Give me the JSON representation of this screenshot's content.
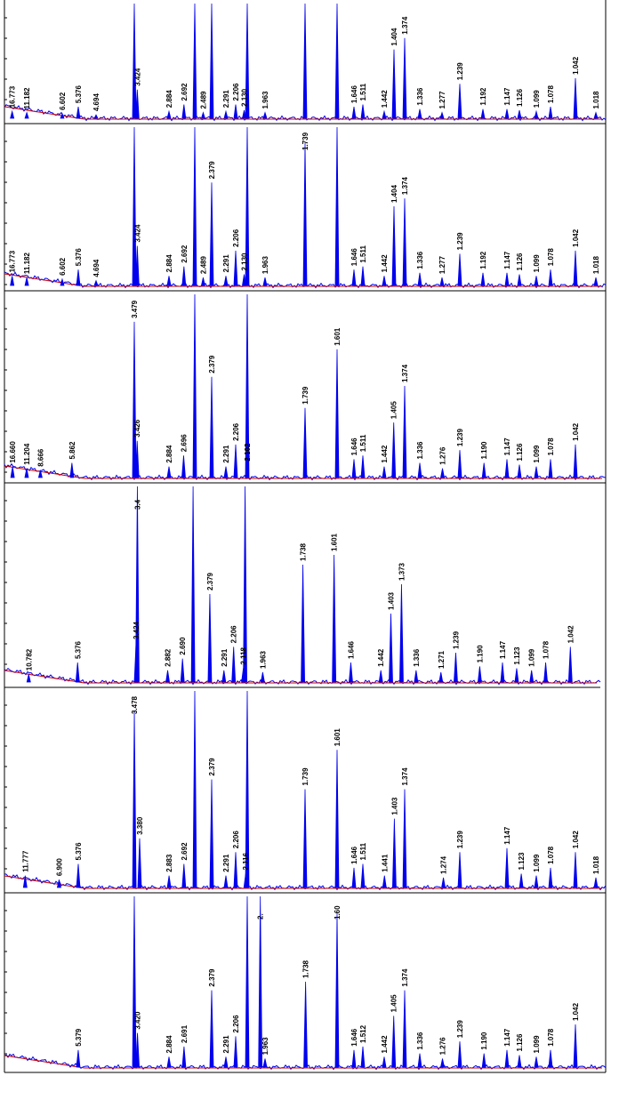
{
  "colors": {
    "trace": "#0000ee",
    "baseline": "#cc0000",
    "label": "#000000",
    "label_red": "#dd0000",
    "axis": "#000000"
  },
  "chart_data": [
    {
      "type": "line",
      "title": "",
      "xlabel": "",
      "ylabel": "",
      "peaks": [
        {
          "d": "16.773",
          "h": 0.06
        },
        {
          "d": "11.182",
          "h": 0.05
        },
        {
          "d": "6.602",
          "h": 0.04
        },
        {
          "d": "5.376",
          "h": 0.1
        },
        {
          "d": "4.694",
          "h": 0.03
        },
        {
          "d": "3.424",
          "h": 0.25
        },
        {
          "d": "2.884",
          "h": 0.06
        },
        {
          "d": "2.692",
          "h": 0.12
        },
        {
          "d": "2.489",
          "h": 0.05
        },
        {
          "d": "2.291",
          "h": 0.06
        },
        {
          "d": "2.206",
          "h": 0.12
        },
        {
          "d": "2.130",
          "h": 0.07
        },
        {
          "d": "1.963",
          "h": 0.05
        },
        {
          "d": "1.646",
          "h": 0.1
        },
        {
          "d": "1.511",
          "h": 0.12
        },
        {
          "d": "1.442",
          "h": 0.06
        },
        {
          "d": "1.404",
          "h": 0.6
        },
        {
          "d": "1.374",
          "h": 0.7
        },
        {
          "d": "1.336",
          "h": 0.08
        },
        {
          "d": "1.277",
          "h": 0.05
        },
        {
          "d": "1.239",
          "h": 0.3
        },
        {
          "d": "1.192",
          "h": 0.08
        },
        {
          "d": "1.147",
          "h": 0.08
        },
        {
          "d": "1.126",
          "h": 0.07
        },
        {
          "d": "1.099",
          "h": 0.06
        },
        {
          "d": "1.078",
          "h": 0.1
        },
        {
          "d": "1.042",
          "h": 0.35
        },
        {
          "d": "1.018",
          "h": 0.05
        }
      ],
      "red_labels": [
        "1.336",
        "1.079",
        "1.042"
      ],
      "unlabeled_peaks": [
        {
          "d": 3.479,
          "h": 1.0
        },
        {
          "d": 2.379,
          "h": 1.0
        },
        {
          "d": 2.598,
          "h": 1.0
        },
        {
          "d": 2.102,
          "h": 1.0
        },
        {
          "d": 1.739,
          "h": 1.0
        },
        {
          "d": 1.601,
          "h": 1.0
        }
      ]
    },
    {
      "type": "line",
      "title": "",
      "xlabel": "",
      "ylabel": "",
      "peaks": [
        {
          "d": "16.773",
          "h": 0.06
        },
        {
          "d": "11.182",
          "h": 0.05
        },
        {
          "d": "6.602",
          "h": 0.04
        },
        {
          "d": "5.376",
          "h": 0.1
        },
        {
          "d": "4.694",
          "h": 0.03
        },
        {
          "d": "3.424",
          "h": 0.25
        },
        {
          "d": "2.884",
          "h": 0.06
        },
        {
          "d": "2.692",
          "h": 0.12
        },
        {
          "d": "2.379",
          "h": 0.65
        },
        {
          "d": "2.489",
          "h": 0.05
        },
        {
          "d": "2.291",
          "h": 0.06
        },
        {
          "d": "2.206",
          "h": 0.22
        },
        {
          "d": "2.130",
          "h": 0.07
        },
        {
          "d": "1.963",
          "h": 0.05
        },
        {
          "d": "1.739",
          "h": 0.9
        },
        {
          "d": "1.646",
          "h": 0.1
        },
        {
          "d": "1.511",
          "h": 0.12
        },
        {
          "d": "1.442",
          "h": 0.06
        },
        {
          "d": "1.404",
          "h": 0.5
        },
        {
          "d": "1.374",
          "h": 0.55
        },
        {
          "d": "1.336",
          "h": 0.08
        },
        {
          "d": "1.277",
          "h": 0.05
        },
        {
          "d": "1.239",
          "h": 0.2
        },
        {
          "d": "1.192",
          "h": 0.08
        },
        {
          "d": "1.147",
          "h": 0.08
        },
        {
          "d": "1.126",
          "h": 0.07
        },
        {
          "d": "1.099",
          "h": 0.06
        },
        {
          "d": "1.078",
          "h": 0.1
        },
        {
          "d": "1.042",
          "h": 0.22
        },
        {
          "d": "1.018",
          "h": 0.05
        }
      ],
      "red_labels": [
        "1.336",
        "1.079",
        "1.042"
      ],
      "unlabeled_peaks": [
        {
          "d": 3.479,
          "h": 1.0
        },
        {
          "d": 2.598,
          "h": 1.0
        },
        {
          "d": 2.102,
          "h": 1.0
        },
        {
          "d": 1.601,
          "h": 1.0
        }
      ]
    },
    {
      "type": "line",
      "title": "",
      "xlabel": "",
      "ylabel": "",
      "peaks": [
        {
          "d": "16.660",
          "h": 0.06
        },
        {
          "d": "11.204",
          "h": 0.05
        },
        {
          "d": "8.666",
          "h": 0.04
        },
        {
          "d": "5.862",
          "h": 0.08
        },
        {
          "d": "3.479",
          "h": 0.85
        },
        {
          "d": "3.426",
          "h": 0.2
        },
        {
          "d": "2.884",
          "h": 0.06
        },
        {
          "d": "2.696",
          "h": 0.12
        },
        {
          "d": "2.379",
          "h": 0.55
        },
        {
          "d": "2.291",
          "h": 0.06
        },
        {
          "d": "2.206",
          "h": 0.18
        },
        {
          "d": "2.102",
          "h": 0.07
        },
        {
          "d": "1.739",
          "h": 0.38
        },
        {
          "d": "1.601",
          "h": 0.7
        },
        {
          "d": "1.646",
          "h": 0.1
        },
        {
          "d": "1.511",
          "h": 0.12
        },
        {
          "d": "1.442",
          "h": 0.06
        },
        {
          "d": "1.405",
          "h": 0.3
        },
        {
          "d": "1.374",
          "h": 0.5
        },
        {
          "d": "1.336",
          "h": 0.08
        },
        {
          "d": "1.276",
          "h": 0.05
        },
        {
          "d": "1.239",
          "h": 0.15
        },
        {
          "d": "1.190",
          "h": 0.08
        },
        {
          "d": "1.147",
          "h": 0.1
        },
        {
          "d": "1.126",
          "h": 0.07
        },
        {
          "d": "1.099",
          "h": 0.06
        },
        {
          "d": "1.078",
          "h": 0.1
        },
        {
          "d": "1.042",
          "h": 0.18
        }
      ],
      "red_labels": [
        "1.079",
        "1.042"
      ],
      "unlabeled_peaks": [
        {
          "d": 2.598,
          "h": 1.0
        },
        {
          "d": 2.102,
          "h": 1.0
        }
      ]
    },
    {
      "type": "line",
      "title": "",
      "xlabel": "",
      "ylabel": "",
      "peaks": [
        {
          "d": "10.782",
          "h": 0.04
        },
        {
          "d": "5.376",
          "h": 0.1
        },
        {
          "d": "3.4",
          "h": 1.0
        },
        {
          "d": "3.424",
          "h": 0.2
        },
        {
          "d": "2.882",
          "h": 0.06
        },
        {
          "d": "2.690",
          "h": 0.12
        },
        {
          "d": "2.379",
          "h": 0.45
        },
        {
          "d": "2.291",
          "h": 0.06
        },
        {
          "d": "2.206",
          "h": 0.18
        },
        {
          "d": "2.118",
          "h": 0.07
        },
        {
          "d": "1.963",
          "h": 0.05
        },
        {
          "d": "1.738",
          "h": 0.6
        },
        {
          "d": "1.601",
          "h": 0.65
        },
        {
          "d": "1.646",
          "h": 0.1
        },
        {
          "d": "1.442",
          "h": 0.06
        },
        {
          "d": "1.403",
          "h": 0.35
        },
        {
          "d": "1.373",
          "h": 0.5
        },
        {
          "d": "1.336",
          "h": 0.06
        },
        {
          "d": "1.271",
          "h": 0.05
        },
        {
          "d": "1.239",
          "h": 0.15
        },
        {
          "d": "1.190",
          "h": 0.08
        },
        {
          "d": "1.147",
          "h": 0.1
        },
        {
          "d": "1.123",
          "h": 0.07
        },
        {
          "d": "1.099",
          "h": 0.06
        },
        {
          "d": "1.078",
          "h": 0.1
        },
        {
          "d": "1.042",
          "h": 0.18
        }
      ],
      "red_labels": [
        "1.079",
        "1.042"
      ],
      "unlabeled_peaks": [
        {
          "d": 2.598,
          "h": 1.0
        },
        {
          "d": 2.102,
          "h": 1.0
        }
      ]
    },
    {
      "type": "line",
      "title": "",
      "xlabel": "",
      "ylabel": "",
      "peaks": [
        {
          "d": "11.777",
          "h": 0.06
        },
        {
          "d": "6.900",
          "h": 0.04
        },
        {
          "d": "5.376",
          "h": 0.12
        },
        {
          "d": "3.478",
          "h": 0.9
        },
        {
          "d": "3.380",
          "h": 0.25
        },
        {
          "d": "2.883",
          "h": 0.06
        },
        {
          "d": "2.692",
          "h": 0.12
        },
        {
          "d": "2.379",
          "h": 0.55
        },
        {
          "d": "2.291",
          "h": 0.06
        },
        {
          "d": "2.206",
          "h": 0.18
        },
        {
          "d": "2.116",
          "h": 0.07
        },
        {
          "d": "1.739",
          "h": 0.5
        },
        {
          "d": "1.601",
          "h": 0.7
        },
        {
          "d": "1.646",
          "h": 0.1
        },
        {
          "d": "1.511",
          "h": 0.12
        },
        {
          "d": "1.441",
          "h": 0.06
        },
        {
          "d": "1.403",
          "h": 0.35
        },
        {
          "d": "1.374",
          "h": 0.5
        },
        {
          "d": "1.274",
          "h": 0.05
        },
        {
          "d": "1.239",
          "h": 0.18
        },
        {
          "d": "1.147",
          "h": 0.2
        },
        {
          "d": "1.123",
          "h": 0.07
        },
        {
          "d": "1.099",
          "h": 0.06
        },
        {
          "d": "1.078",
          "h": 0.1
        },
        {
          "d": "1.042",
          "h": 0.18
        },
        {
          "d": "1.018",
          "h": 0.05
        }
      ],
      "red_labels": [
        "1.147",
        "1.042"
      ],
      "unlabeled_peaks": [
        {
          "d": 2.598,
          "h": 1.0
        },
        {
          "d": 2.102,
          "h": 1.0
        }
      ]
    },
    {
      "type": "line",
      "title": "",
      "xlabel": "",
      "ylabel": "",
      "peaks": [
        {
          "d": "5.379",
          "h": 0.1
        },
        {
          "d": "3.420",
          "h": 0.2
        },
        {
          "d": "2.884",
          "h": 0.06
        },
        {
          "d": "2.691",
          "h": 0.12
        },
        {
          "d": "2.",
          "h": 1.0
        },
        {
          "d": "2.379",
          "h": 0.45
        },
        {
          "d": "2.291",
          "h": 0.06
        },
        {
          "d": "2.206",
          "h": 0.18
        },
        {
          "d": "1.963",
          "h": 0.05
        },
        {
          "d": "1.738",
          "h": 0.5
        },
        {
          "d": "1.60",
          "h": 0.9
        },
        {
          "d": "1.646",
          "h": 0.1
        },
        {
          "d": "1.512",
          "h": 0.12
        },
        {
          "d": "1.442",
          "h": 0.06
        },
        {
          "d": "1.405",
          "h": 0.3
        },
        {
          "d": "1.374",
          "h": 0.45
        },
        {
          "d": "1.336",
          "h": 0.08
        },
        {
          "d": "1.276",
          "h": 0.05
        },
        {
          "d": "1.239",
          "h": 0.15
        },
        {
          "d": "1.190",
          "h": 0.08
        },
        {
          "d": "1.147",
          "h": 0.1
        },
        {
          "d": "1.126",
          "h": 0.07
        },
        {
          "d": "1.099",
          "h": 0.06
        },
        {
          "d": "1.078",
          "h": 0.1
        },
        {
          "d": "1.042",
          "h": 0.25
        }
      ],
      "red_labels": [
        "1.042"
      ],
      "unlabeled_peaks": [
        {
          "d": 3.479,
          "h": 1.0
        },
        {
          "d": 2.102,
          "h": 1.0
        }
      ]
    }
  ]
}
